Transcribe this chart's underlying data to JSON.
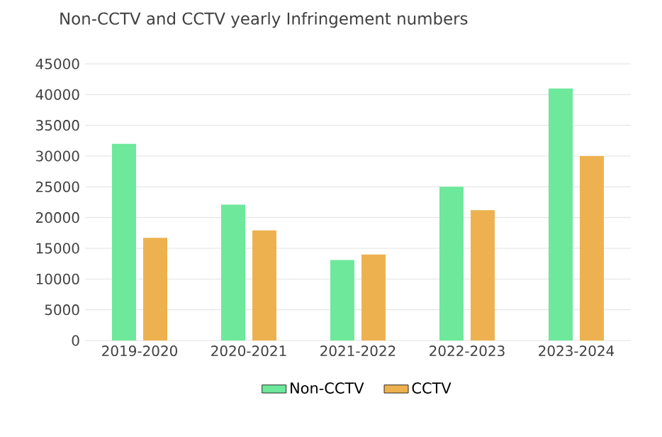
{
  "chart_data": {
    "type": "bar",
    "title": "Non-CCTV and CCTV yearly Infringement numbers",
    "categories": [
      "2019-2020",
      "2020-2021",
      "2021-2022",
      "2022-2023",
      "2023-2024"
    ],
    "series": [
      {
        "name": "Non-CCTV",
        "color": "#6ee89a",
        "values": [
          32000,
          22100,
          13100,
          25000,
          41000
        ]
      },
      {
        "name": "CCTV",
        "color": "#edb24f",
        "values": [
          16700,
          17900,
          14000,
          21200,
          30000
        ]
      }
    ],
    "ylim": [
      0,
      45000
    ],
    "yticks": [
      0,
      5000,
      10000,
      15000,
      20000,
      25000,
      30000,
      35000,
      40000,
      45000
    ],
    "grid": "y",
    "legend": "bottom"
  }
}
